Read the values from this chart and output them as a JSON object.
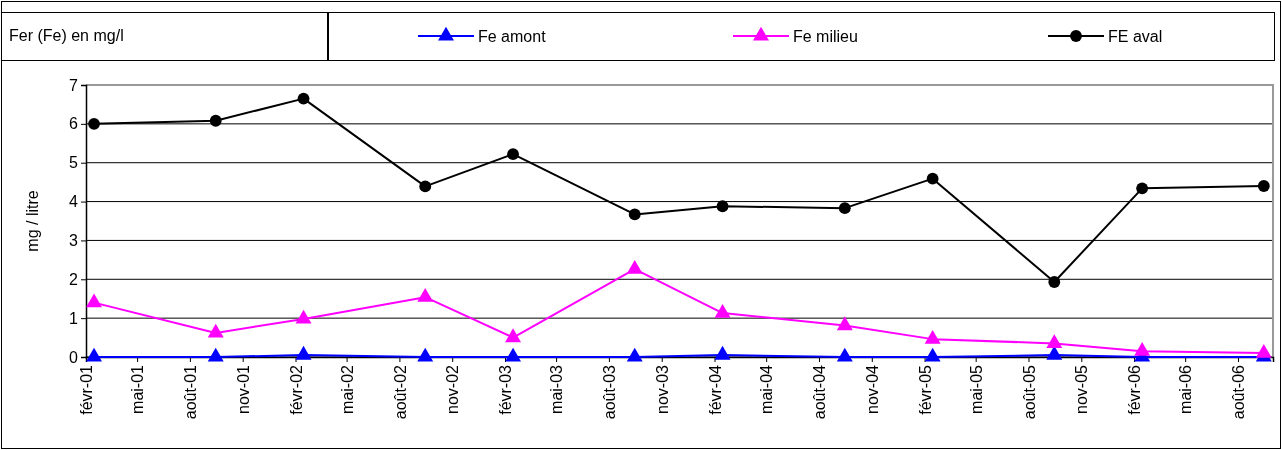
{
  "chart_data": {
    "type": "line",
    "title": "Fer (Fe) en mg/l",
    "ylabel": "mg / litre",
    "x": [
      "2001-02-15",
      "2001-09-15",
      "2002-02-15",
      "2002-09-15",
      "2003-02-15",
      "2003-09-15",
      "2004-02-15",
      "2004-09-15",
      "2005-02-15",
      "2005-09-15",
      "2006-02-15",
      "2006-09-15"
    ],
    "xlim": [
      "2001-02-01",
      "2006-10-01"
    ],
    "xticks": [
      {
        "value": "2001-02-01",
        "label": "févr-01"
      },
      {
        "value": "2001-05-01",
        "label": "mai-01"
      },
      {
        "value": "2001-08-01",
        "label": "août-01"
      },
      {
        "value": "2001-11-01",
        "label": "nov-01"
      },
      {
        "value": "2002-02-01",
        "label": "févr-02"
      },
      {
        "value": "2002-05-01",
        "label": "mai-02"
      },
      {
        "value": "2002-08-01",
        "label": "août-02"
      },
      {
        "value": "2002-11-01",
        "label": "nov-02"
      },
      {
        "value": "2003-02-01",
        "label": "févr-03"
      },
      {
        "value": "2003-05-01",
        "label": "mai-03"
      },
      {
        "value": "2003-08-01",
        "label": "août-03"
      },
      {
        "value": "2003-11-01",
        "label": "nov-03"
      },
      {
        "value": "2004-02-01",
        "label": "févr-04"
      },
      {
        "value": "2004-05-01",
        "label": "mai-04"
      },
      {
        "value": "2004-08-01",
        "label": "août-04"
      },
      {
        "value": "2004-11-01",
        "label": "nov-04"
      },
      {
        "value": "2005-02-01",
        "label": "févr-05"
      },
      {
        "value": "2005-05-01",
        "label": "mai-05"
      },
      {
        "value": "2005-08-01",
        "label": "août-05"
      },
      {
        "value": "2005-11-01",
        "label": "nov-05"
      },
      {
        "value": "2006-02-01",
        "label": "févr-06"
      },
      {
        "value": "2006-05-01",
        "label": "mai-06"
      },
      {
        "value": "2006-08-01",
        "label": "août-06"
      }
    ],
    "ylim": [
      0,
      7
    ],
    "yticks": [
      0,
      1,
      2,
      3,
      4,
      5,
      6,
      7
    ],
    "grid": "y",
    "legend": "top",
    "series": [
      {
        "name": "Fe amont",
        "color": "#0000ff",
        "marker": "triangle",
        "values": [
          0,
          0,
          0.05,
          0,
          0,
          0,
          0.05,
          0,
          0,
          0.05,
          0,
          0
        ]
      },
      {
        "name": "Fe milieu",
        "color": "#ff00ff",
        "marker": "triangle",
        "values": [
          1.4,
          0.62,
          0.98,
          1.54,
          0.5,
          2.26,
          1.13,
          0.81,
          0.46,
          0.35,
          0.15,
          0.1
        ]
      },
      {
        "name": "FE aval",
        "color": "#000000",
        "marker": "circle",
        "values": [
          6.0,
          6.08,
          6.65,
          4.39,
          5.22,
          3.67,
          3.88,
          3.83,
          4.59,
          1.93,
          4.34,
          4.4
        ]
      }
    ]
  }
}
